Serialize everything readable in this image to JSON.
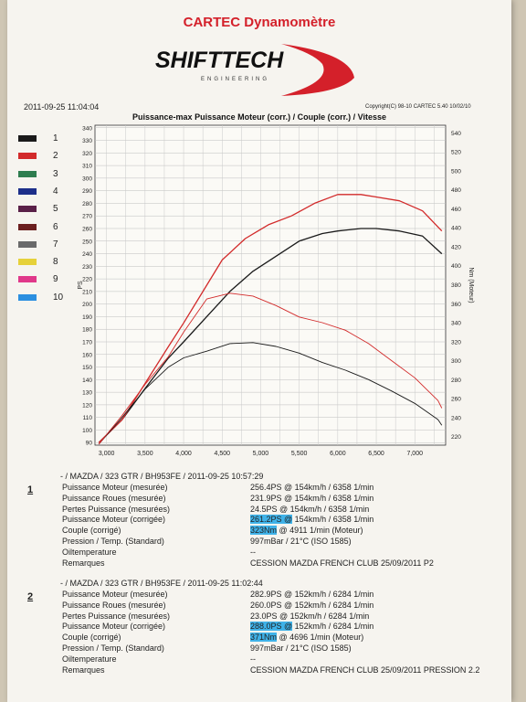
{
  "header": {
    "title": "CARTEC Dynamomètre",
    "logo_main": "SHIFTTECH",
    "logo_sub": "ENGINEERING",
    "date": "2011-09-25 11:04:04",
    "copyright": "Copyright(C) 98-10 CARTEC 5.40 10/02/10"
  },
  "legend": [
    {
      "label": "1",
      "color": "#1a1a1a"
    },
    {
      "label": "2",
      "color": "#d22a2a"
    },
    {
      "label": "3",
      "color": "#2e7d4f"
    },
    {
      "label": "4",
      "color": "#1d2f8a"
    },
    {
      "label": "5",
      "color": "#5a2048"
    },
    {
      "label": "6",
      "color": "#6b1f1f"
    },
    {
      "label": "7",
      "color": "#6a6a6a"
    },
    {
      "label": "8",
      "color": "#e6d13a"
    },
    {
      "label": "9",
      "color": "#e0388a"
    },
    {
      "label": "10",
      "color": "#2b8fe0"
    }
  ],
  "chart_data": {
    "type": "line",
    "title": "Puissance-max Puissance Moteur (corr.) / Couple (corr.) / Vitesse",
    "ylabel": "PS",
    "y2label": "Nm (Moteur)",
    "xlim": [
      2850,
      7400
    ],
    "ylim": [
      88,
      342
    ],
    "y2lim": [
      211,
      548
    ],
    "xticks": [
      "3,000",
      "3,500",
      "4,000",
      "4,500",
      "5,000",
      "5,500",
      "6,000",
      "6,500",
      "7,000"
    ],
    "xtick_values": [
      3000,
      3500,
      4000,
      4500,
      5000,
      5500,
      6000,
      6500,
      7000
    ],
    "yticks": [
      90,
      100,
      110,
      120,
      130,
      140,
      150,
      160,
      170,
      180,
      190,
      200,
      210,
      220,
      230,
      240,
      250,
      260,
      270,
      280,
      290,
      300,
      310,
      320,
      330,
      340
    ],
    "y2ticks": [
      220,
      240,
      260,
      280,
      300,
      320,
      340,
      360,
      380,
      400,
      420,
      440,
      460,
      480,
      500,
      520,
      540
    ],
    "grid": true,
    "series": [
      {
        "name": "1",
        "axis": "left",
        "color": "#1a1a1a",
        "x": [
          2900,
          3200,
          3500,
          3800,
          4000,
          4300,
          4600,
          4900,
          5200,
          5500,
          5800,
          6000,
          6300,
          6500,
          6800,
          7100,
          7350
        ],
        "values": [
          90,
          108,
          133,
          157,
          170,
          190,
          210,
          226,
          238,
          250,
          256,
          258,
          260,
          260,
          258,
          254,
          240
        ]
      },
      {
        "name": "2",
        "axis": "left",
        "color": "#d22a2a",
        "x": [
          2900,
          3200,
          3500,
          3800,
          4000,
          4300,
          4500,
          4800,
          5100,
          5400,
          5700,
          6000,
          6300,
          6500,
          6800,
          7100,
          7350
        ],
        "values": [
          90,
          108,
          137,
          166,
          185,
          215,
          235,
          252,
          263,
          270,
          280,
          287,
          287,
          285,
          282,
          274,
          258
        ]
      },
      {
        "name": "1",
        "axis": "right",
        "color": "#1a1a1a",
        "x": [
          2900,
          3200,
          3500,
          3800,
          4000,
          4300,
          4600,
          4900,
          5200,
          5500,
          5800,
          6100,
          6400,
          6700,
          7000,
          7300,
          7350
        ],
        "values": [
          212,
          240,
          270,
          293,
          303,
          310,
          318,
          319,
          315,
          308,
          298,
          290,
          280,
          268,
          255,
          238,
          232
        ]
      },
      {
        "name": "2",
        "axis": "right",
        "color": "#d22a2a",
        "x": [
          2900,
          3200,
          3500,
          3800,
          4000,
          4300,
          4600,
          4900,
          5200,
          5500,
          5800,
          6100,
          6400,
          6700,
          7000,
          7300,
          7350
        ],
        "values": [
          212,
          242,
          275,
          304,
          330,
          365,
          371,
          368,
          358,
          346,
          340,
          332,
          318,
          300,
          282,
          258,
          250
        ]
      }
    ]
  },
  "runs": [
    {
      "number": "1",
      "heading": "- / MAZDA / 323 GTR / BH953FE / 2011-09-25 10:57:29",
      "rows": [
        {
          "label": "Puissance Moteur (mesurée)",
          "value": "256.4PS @ 154km/h / 6358 1/min"
        },
        {
          "label": "Puissance Roues (mesurée)",
          "value": "231.9PS @ 154km/h / 6358 1/min"
        },
        {
          "label": "Pertes Puissance (mesurées)",
          "value": "24.5PS @ 154km/h / 6358 1/min"
        },
        {
          "label": "Puissance Moteur (corrigée)",
          "value_hl": "261.2PS @",
          "value": " 154km/h / 6358 1/min"
        },
        {
          "label": "Couple (corrigé)",
          "value_hl": "323Nm",
          "value": " @ 4911 1/min (Moteur)"
        },
        {
          "label": "Pression / Temp. (Standard)",
          "value": "997mBar / 21°C  (ISO 1585)"
        },
        {
          "label": "Oiltemperature",
          "value": "--"
        },
        {
          "label": "Remarques",
          "value": "CESSION MAZDA FRENCH CLUB 25/09/2011 P2"
        }
      ]
    },
    {
      "number": "2",
      "heading": "- / MAZDA / 323 GTR / BH953FE / 2011-09-25 11:02:44",
      "rows": [
        {
          "label": "Puissance Moteur (mesurée)",
          "value": "282.9PS @ 152km/h / 6284 1/min"
        },
        {
          "label": "Puissance Roues (mesurée)",
          "value": "260.0PS @ 152km/h / 6284 1/min"
        },
        {
          "label": "Pertes Puissance (mesurées)",
          "value": "23.0PS @ 152km/h / 6284 1/min"
        },
        {
          "label": "Puissance Moteur (corrigée)",
          "value_hl": "288.0PS @",
          "value": " 152km/h / 6284 1/min"
        },
        {
          "label": "Couple (corrigé)",
          "value_hl": "371Nm",
          "value": " @ 4696 1/min (Moteur)"
        },
        {
          "label": "Pression / Temp. (Standard)",
          "value": "997mBar / 21°C  (ISO 1585)"
        },
        {
          "label": "Oiltemperature",
          "value": "--"
        },
        {
          "label": "Remarques",
          "value": "CESSION MAZDA FRENCH CLUB 25/09/2011 PRESSION 2.2"
        }
      ]
    }
  ]
}
